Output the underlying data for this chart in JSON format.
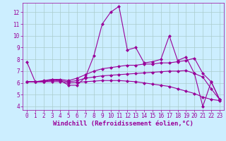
{
  "xlabel": "Windchill (Refroidissement éolien,°C)",
  "background_color": "#cceeff",
  "grid_color": "#aacccc",
  "line_color": "#990099",
  "xlim": [
    -0.5,
    23.5
  ],
  "ylim": [
    3.7,
    12.8
  ],
  "yticks": [
    4,
    5,
    6,
    7,
    8,
    9,
    10,
    11,
    12
  ],
  "xticks": [
    0,
    1,
    2,
    3,
    4,
    5,
    6,
    7,
    8,
    9,
    10,
    11,
    12,
    13,
    14,
    15,
    16,
    17,
    18,
    19,
    20,
    21,
    22,
    23
  ],
  "series": [
    {
      "x": [
        0,
        1,
        2,
        3,
        4,
        5,
        6,
        7,
        8,
        9,
        10,
        11,
        12,
        13,
        14,
        15,
        16,
        17,
        18,
        19,
        20,
        21,
        22,
        23
      ],
      "y": [
        7.8,
        6.1,
        6.2,
        6.3,
        6.2,
        5.8,
        5.8,
        6.5,
        8.3,
        11.0,
        12.0,
        12.5,
        8.8,
        9.0,
        7.7,
        7.8,
        8.0,
        10.0,
        7.9,
        8.2,
        6.8,
        4.0,
        6.1,
        4.6
      ]
    },
    {
      "x": [
        0,
        1,
        2,
        3,
        4,
        5,
        6,
        7,
        8,
        9,
        10,
        11,
        12,
        13,
        14,
        15,
        16,
        17,
        18,
        19,
        20,
        21,
        22,
        23
      ],
      "y": [
        6.1,
        6.1,
        6.1,
        6.3,
        6.3,
        6.2,
        6.4,
        6.7,
        7.0,
        7.2,
        7.3,
        7.4,
        7.5,
        7.5,
        7.6,
        7.6,
        7.7,
        7.7,
        7.8,
        7.9,
        8.1,
        6.8,
        6.1,
        4.6
      ]
    },
    {
      "x": [
        0,
        1,
        2,
        3,
        4,
        5,
        6,
        7,
        8,
        9,
        10,
        11,
        12,
        13,
        14,
        15,
        16,
        17,
        18,
        19,
        20,
        21,
        22,
        23
      ],
      "y": [
        6.1,
        6.1,
        6.1,
        6.2,
        6.2,
        6.1,
        6.2,
        6.4,
        6.5,
        6.6,
        6.65,
        6.7,
        6.75,
        6.8,
        6.85,
        6.9,
        6.95,
        7.0,
        7.0,
        7.05,
        6.8,
        6.5,
        5.5,
        4.6
      ]
    },
    {
      "x": [
        0,
        1,
        2,
        3,
        4,
        5,
        6,
        7,
        8,
        9,
        10,
        11,
        12,
        13,
        14,
        15,
        16,
        17,
        18,
        19,
        20,
        21,
        22,
        23
      ],
      "y": [
        6.1,
        6.1,
        6.1,
        6.1,
        6.1,
        6.0,
        6.05,
        6.1,
        6.15,
        6.2,
        6.2,
        6.2,
        6.15,
        6.1,
        6.0,
        5.9,
        5.8,
        5.7,
        5.5,
        5.3,
        5.1,
        4.8,
        4.6,
        4.5
      ]
    }
  ],
  "marker": "D",
  "markersize": 2,
  "linewidth": 0.8,
  "tick_fontsize": 5.5,
  "xlabel_fontsize": 6.5
}
